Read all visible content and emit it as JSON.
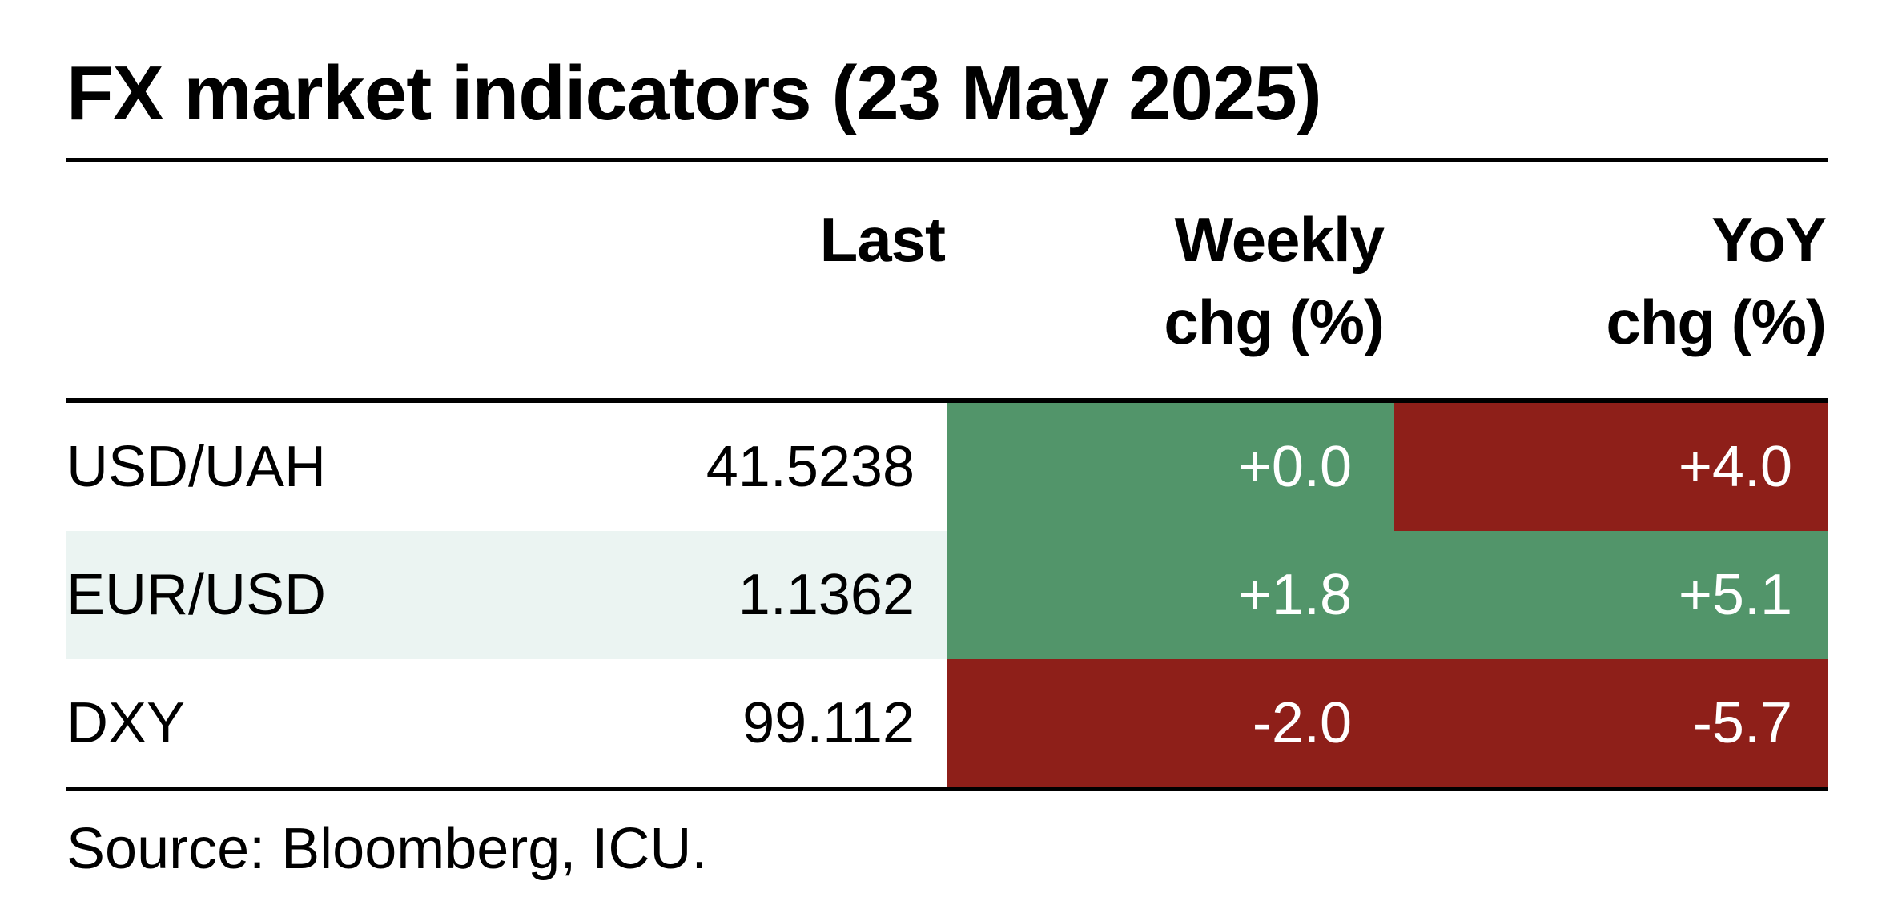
{
  "title": "FX market indicators (23 May 2025)",
  "chart_data": {
    "type": "table",
    "columns": [
      "",
      "Last",
      "Weekly chg (%)",
      "YoY chg (%)"
    ],
    "headers": {
      "last": "Last",
      "weekly_line1": "Weekly",
      "weekly_line2": "chg (%)",
      "yoy_line1": "YoY",
      "yoy_line2": "chg (%)"
    },
    "rows": [
      {
        "label": "USD/UAH",
        "last": "41.5238",
        "weekly": "+0.0",
        "yoy": "+4.0",
        "weekly_color": "#52956a",
        "yoy_color": "#8e1f19",
        "row_bg": "#ffffff"
      },
      {
        "label": "EUR/USD",
        "last": "1.1362",
        "weekly": "+1.8",
        "yoy": "+5.1",
        "weekly_color": "#52956a",
        "yoy_color": "#52956a",
        "row_bg": "#ebf4f2"
      },
      {
        "label": "DXY",
        "last": "99.112",
        "weekly": "-2.0",
        "yoy": "-5.7",
        "weekly_color": "#8e1f19",
        "yoy_color": "#8e1f19",
        "row_bg": "#ffffff"
      }
    ]
  },
  "source": "Source: Bloomberg, ICU.",
  "colors": {
    "positive_cell": "#52956a",
    "negative_cell": "#8e1f19",
    "alt_row_bg": "#ebf4f2",
    "rule": "#000000"
  }
}
